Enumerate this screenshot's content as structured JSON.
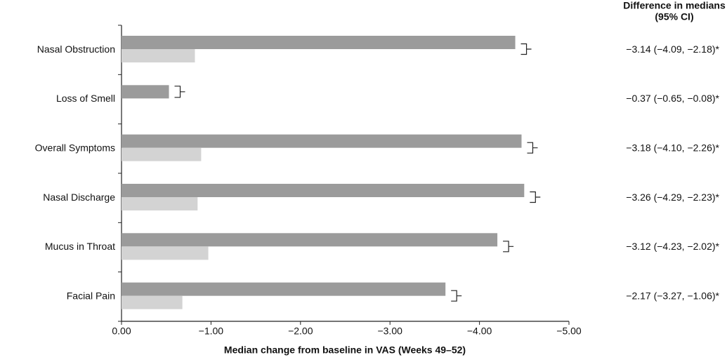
{
  "chart_data": {
    "type": "bar",
    "orientation": "horizontal",
    "categories": [
      "Nasal Obstruction",
      "Loss of Smell",
      "Overall Symptoms",
      "Nasal Discharge",
      "Mucus in Throat",
      "Facial Pain"
    ],
    "series": [
      {
        "color": "#9b9b9b",
        "values": [
          -4.4,
          -0.53,
          -4.47,
          -4.5,
          -4.2,
          -3.62
        ]
      },
      {
        "color": "#d3d3d3",
        "values": [
          -0.82,
          null,
          -0.89,
          -0.85,
          -0.97,
          -0.68
        ]
      }
    ],
    "xlim": [
      0,
      -5
    ],
    "xticks": [
      {
        "value": 0,
        "label": "0.00"
      },
      {
        "value": -1,
        "label": "−1.00"
      },
      {
        "value": -2,
        "label": "−2.00"
      },
      {
        "value": -3,
        "label": "−3.00"
      },
      {
        "value": -4,
        "label": "−4.00"
      },
      {
        "value": -5,
        "label": "−5.00"
      }
    ],
    "x_label": "Median change from baseline in VAS (Weeks 49–52)",
    "difference_header": [
      "Difference in medians",
      "(95% CI)"
    ],
    "differences": [
      "−3.14 (−4.09, −2.18)*",
      "−0.37 (−0.65, −0.08)*",
      "−3.18 (−4.10, −2.26)*",
      "−3.26 (−4.29, −2.23)*",
      "−3.12 (−4.23, −2.02)*",
      "−2.17 (−3.27, −1.06)*"
    ]
  }
}
